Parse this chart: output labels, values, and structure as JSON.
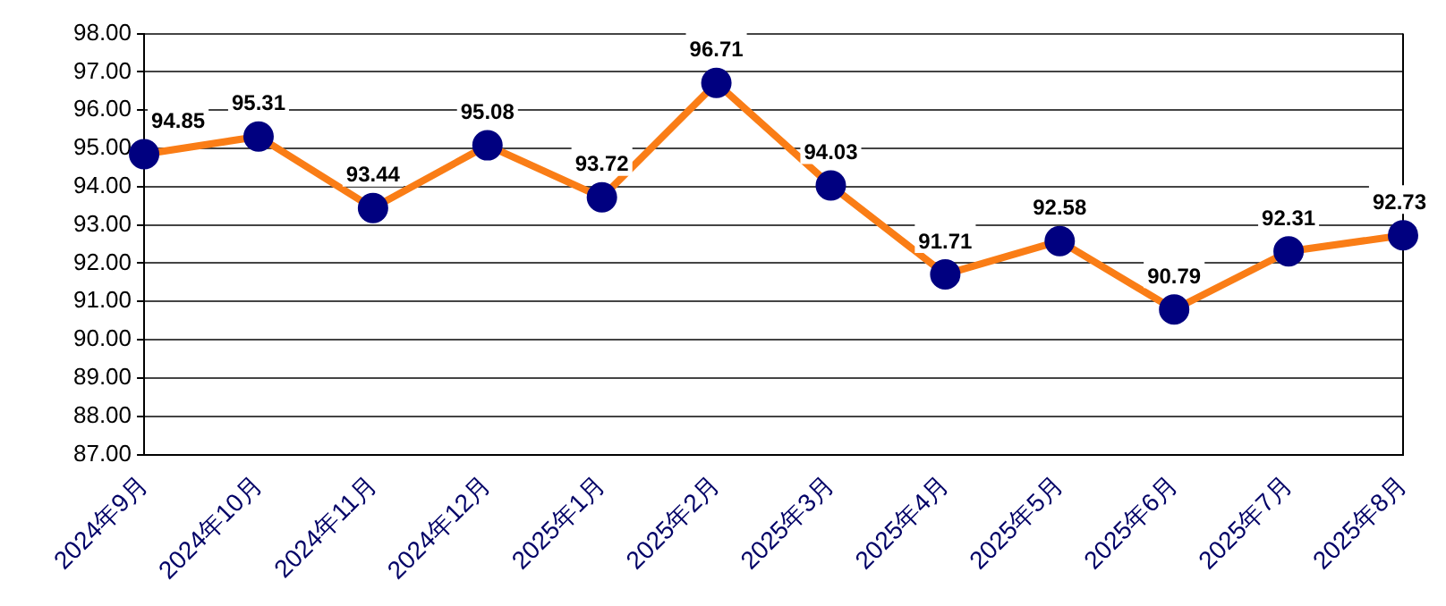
{
  "chart_data": {
    "type": "line",
    "categories": [
      "2024年9月",
      "2024年10月",
      "2024年11月",
      "2024年12月",
      "2025年1月",
      "2025年2月",
      "2025年3月",
      "2025年4月",
      "2025年5月",
      "2025年6月",
      "2025年7月",
      "2025年8月"
    ],
    "series": [
      {
        "color": "#fa7d16",
        "colors": [
          "#000080",
          "#000080",
          "#000080",
          "#000080",
          "#000080",
          "#000080",
          "#000080",
          "#000080",
          "#000080",
          "#000080",
          "#000080",
          "#000080"
        ],
        "values": [
          94.85,
          95.31,
          93.44,
          95.08,
          93.72,
          96.71,
          94.03,
          91.71,
          92.58,
          90.79,
          92.31,
          92.73
        ]
      }
    ],
    "ylim": [
      87,
      98
    ],
    "yticks": [
      {
        "value": 87,
        "label": "87.00"
      },
      {
        "value": 88,
        "label": "88.00"
      },
      {
        "value": 89,
        "label": "89.00"
      },
      {
        "value": 90,
        "label": "90.00"
      },
      {
        "value": 91,
        "label": "91.00"
      },
      {
        "value": 92,
        "label": "92.00"
      },
      {
        "value": 93,
        "label": "93.00"
      },
      {
        "value": 94,
        "label": "94.00"
      },
      {
        "value": 95,
        "label": "95.00"
      },
      {
        "value": 96,
        "label": "96.00"
      },
      {
        "value": 97,
        "label": "97.00"
      },
      {
        "value": 98,
        "label": "98.00"
      }
    ],
    "grid": "y",
    "legend": false,
    "marker": "circle",
    "line_style": "solid",
    "data_labels": true
  }
}
